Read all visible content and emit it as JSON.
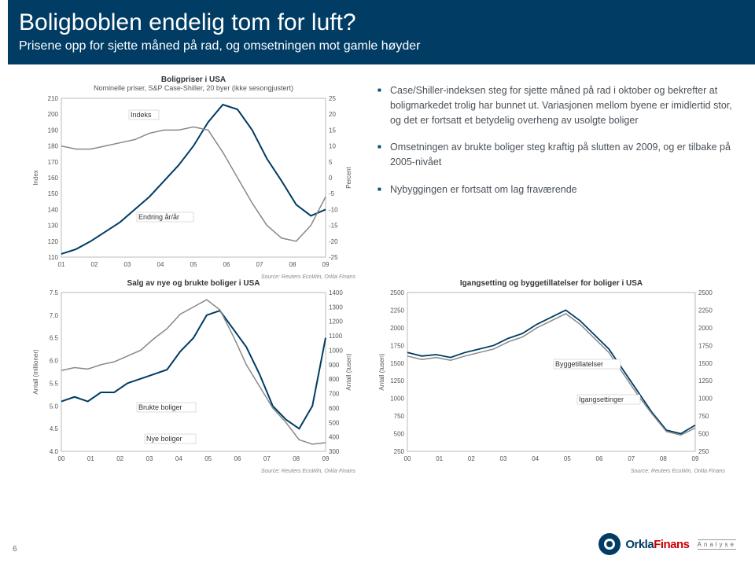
{
  "header": {
    "title": "Boligboblen endelig tom for luft?",
    "subtitle": "Prisene opp for sjette måned på rad, og omsetningen mot gamle høyder"
  },
  "bullets": [
    "Case/Shiller-indeksen steg for sjette måned på rad i oktober og bekrefter at boligmarkedet trolig har bunnet ut. Variasjonen mellom byene er imidlertid stor, og det er fortsatt et betydelig overheng av usolgte boliger",
    "Omsetningen av brukte boliger steg kraftig på slutten av 2009, og er tilbake på 2005-nivået",
    "Nybyggingen er fortsatt om lag fraværende"
  ],
  "chart1": {
    "title": "Boligpriser i USA",
    "subtitle": "Nominelle priser, S&P Case-Shiller, 20 byer (ikke sesongjustert)",
    "left_axis": {
      "label": "Index",
      "min": 110,
      "max": 210,
      "step": 10
    },
    "right_axis": {
      "label": "Percent",
      "min": -25,
      "max": 25,
      "step": 5
    },
    "x_ticks": [
      "01",
      "02",
      "03",
      "04",
      "05",
      "06",
      "07",
      "08",
      "09"
    ],
    "series": [
      {
        "name": "Indeks",
        "label": "Indeks",
        "color": "#003c64",
        "width": 2,
        "data": [
          112,
          115,
          120,
          126,
          132,
          140,
          148,
          158,
          168,
          180,
          195,
          206,
          203,
          190,
          172,
          158,
          143,
          136,
          140
        ]
      },
      {
        "name": "Endring",
        "label": "Endring år/år",
        "color": "#888888",
        "width": 1.5,
        "data": [
          10,
          9,
          9,
          10,
          11,
          12,
          14,
          15,
          15,
          16,
          15,
          8,
          0,
          -8,
          -15,
          -19,
          -20,
          -15,
          -6
        ]
      }
    ],
    "source": "Source: Reuters EcoWin, Orkla Finans"
  },
  "chart2": {
    "title": "Salg av nye og brukte boliger i USA",
    "left_axis": {
      "label": "Antall (millioner)",
      "min": 4.0,
      "max": 7.5,
      "step": 0.5
    },
    "right_axis": {
      "label": "Antall (tusen)",
      "min": 300,
      "max": 1400,
      "step": 100
    },
    "x_ticks": [
      "00",
      "01",
      "02",
      "03",
      "04",
      "05",
      "06",
      "07",
      "08",
      "09"
    ],
    "series": [
      {
        "name": "Brukte",
        "label": "Brukte boliger",
        "color": "#003c64",
        "width": 2,
        "data": [
          5.1,
          5.2,
          5.1,
          5.3,
          5.3,
          5.5,
          5.6,
          5.7,
          5.8,
          6.2,
          6.5,
          7.0,
          7.1,
          6.7,
          6.3,
          5.7,
          5.0,
          4.7,
          4.5,
          5.0,
          6.5
        ]
      },
      {
        "name": "Nye",
        "label": "Nye boliger",
        "color": "#888888",
        "width": 1.5,
        "data": [
          860,
          880,
          870,
          900,
          920,
          960,
          1000,
          1080,
          1150,
          1250,
          1300,
          1350,
          1280,
          1100,
          900,
          750,
          600,
          500,
          380,
          350,
          360
        ]
      }
    ],
    "source": "Source: Reuters EcoWin, Orkla Finans"
  },
  "chart3": {
    "title": "Igangsetting og byggetillatelser for boliger i USA",
    "left_axis": {
      "label": "Antall (tusen)",
      "min": 250,
      "max": 2500,
      "step": 250
    },
    "right_axis": {
      "min": 250,
      "max": 2500,
      "step": 250
    },
    "x_ticks": [
      "00",
      "01",
      "02",
      "03",
      "04",
      "05",
      "06",
      "07",
      "08",
      "09"
    ],
    "series": [
      {
        "name": "Bygg",
        "label": "Byggetillatelser",
        "color": "#003c64",
        "width": 1.8,
        "data": [
          1650,
          1600,
          1620,
          1580,
          1650,
          1700,
          1750,
          1850,
          1920,
          2050,
          2150,
          2250,
          2100,
          1900,
          1700,
          1400,
          1100,
          800,
          550,
          500,
          620
        ]
      },
      {
        "name": "Igang",
        "label": "Igangsettinger",
        "color": "#888888",
        "width": 1.5,
        "data": [
          1600,
          1550,
          1580,
          1540,
          1600,
          1650,
          1700,
          1800,
          1870,
          2000,
          2100,
          2200,
          2050,
          1850,
          1650,
          1350,
          1050,
          780,
          530,
          480,
          580
        ]
      }
    ],
    "source": "Source: Reuters EcoWin, Orkla Finans"
  },
  "page_number": "6",
  "logo": {
    "brand1": "Orkla",
    "brand2": "Finans",
    "tag": "Analyse"
  }
}
